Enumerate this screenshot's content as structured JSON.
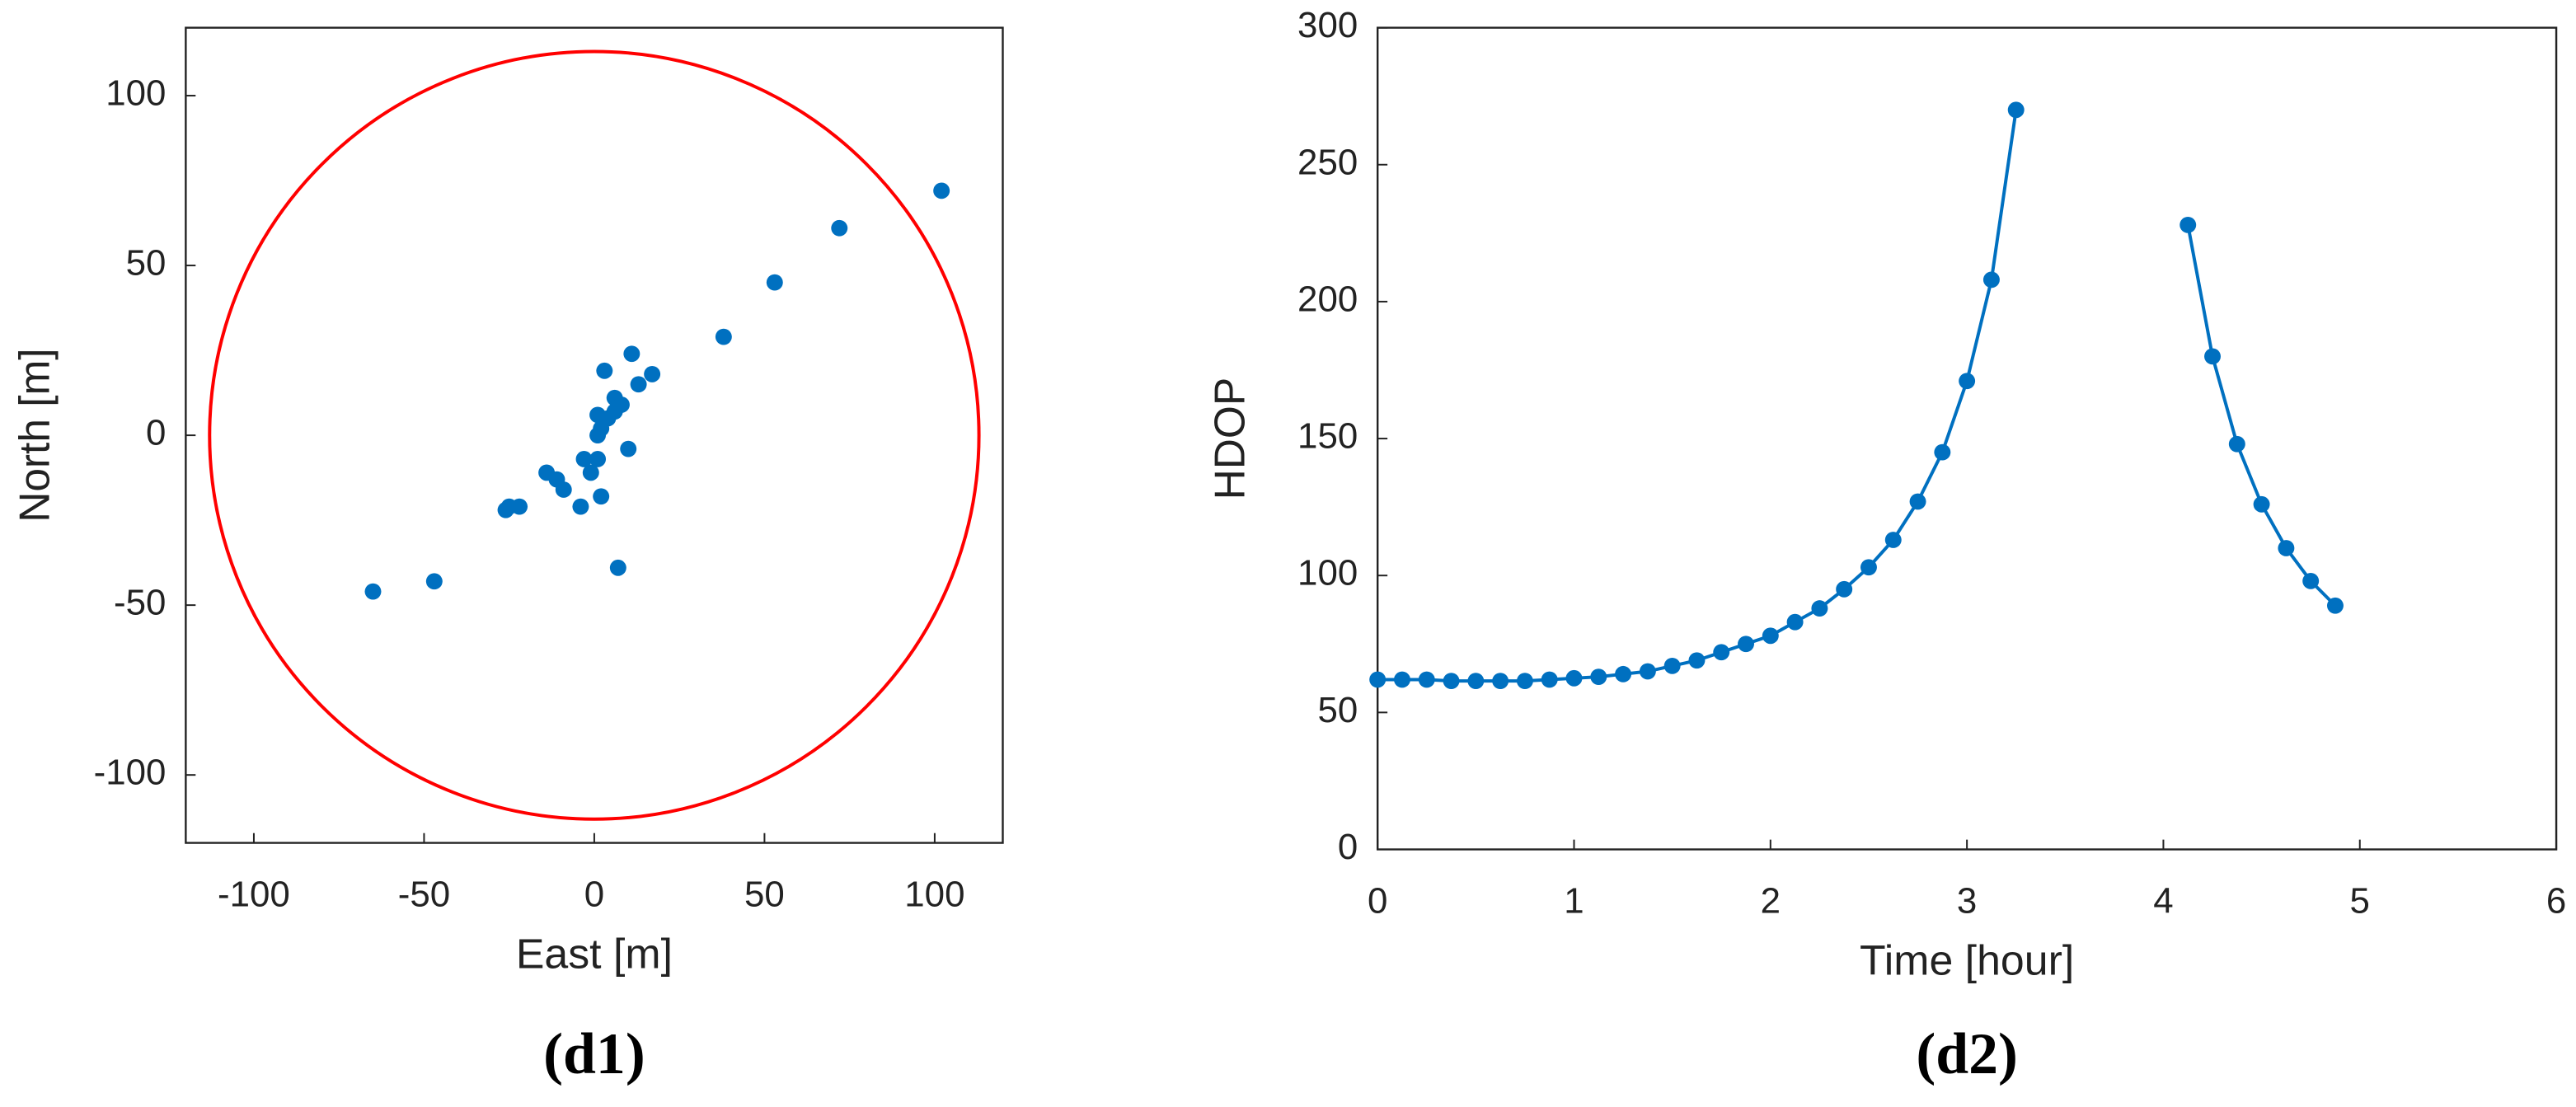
{
  "chart_data": [
    {
      "type": "scatter",
      "caption": "(d1)",
      "xlabel": "East [m]",
      "ylabel": "North [m]",
      "xlim": [
        -120,
        120
      ],
      "ylim": [
        -120,
        120
      ],
      "xticks": [
        -100,
        -50,
        0,
        50,
        100
      ],
      "yticks": [
        -100,
        -50,
        0,
        50,
        100
      ],
      "circle": {
        "radius": 113,
        "color": "#ff0000"
      },
      "series": [
        {
          "color": "#0070c0",
          "x": [
            102,
            72,
            53,
            38,
            11,
            3,
            17,
            13,
            6,
            8,
            6,
            4,
            1,
            2,
            1,
            10,
            -3,
            1,
            -1,
            -14,
            -11,
            -9,
            2,
            -22,
            -25,
            -26,
            -4,
            7,
            -47,
            -65
          ],
          "values": [
            72,
            61,
            45,
            29,
            24,
            19,
            18,
            15,
            11,
            9,
            7,
            5,
            6,
            2,
            0,
            -4,
            -7,
            -7,
            -11,
            -11,
            -13,
            -16,
            -18,
            -21,
            -21,
            -22,
            -21,
            -39,
            -43,
            -46
          ]
        }
      ]
    },
    {
      "type": "line",
      "caption": "(d2)",
      "xlabel": "Time [hour]",
      "ylabel": "HDOP",
      "xlim": [
        0,
        6
      ],
      "ylim": [
        0,
        300
      ],
      "xticks": [
        0,
        1,
        2,
        3,
        4,
        5,
        6
      ],
      "yticks": [
        0,
        50,
        100,
        150,
        200,
        250,
        300
      ],
      "series": [
        {
          "color": "#0070c0",
          "x": [
            0,
            0.125,
            0.25,
            0.375,
            0.5,
            0.625,
            0.75,
            0.875,
            1,
            1.125,
            1.25,
            1.375,
            1.5,
            1.625,
            1.75,
            1.875,
            2,
            2.125,
            2.25,
            2.375,
            2.5,
            2.625,
            2.75,
            2.875,
            3,
            3.125,
            3.25
          ],
          "values": [
            62,
            62,
            62,
            61.5,
            61.5,
            61.5,
            61.5,
            62,
            62.5,
            63,
            64,
            65,
            67,
            69,
            72,
            75,
            78,
            83,
            88,
            95,
            103,
            113,
            127,
            145,
            171,
            208,
            270
          ]
        },
        {
          "color": "#0070c0",
          "x": [
            4.125,
            4.25,
            4.375,
            4.5,
            4.625,
            4.75,
            4.875
          ],
          "values": [
            228,
            180,
            148,
            126,
            110,
            98,
            89
          ]
        }
      ]
    }
  ]
}
